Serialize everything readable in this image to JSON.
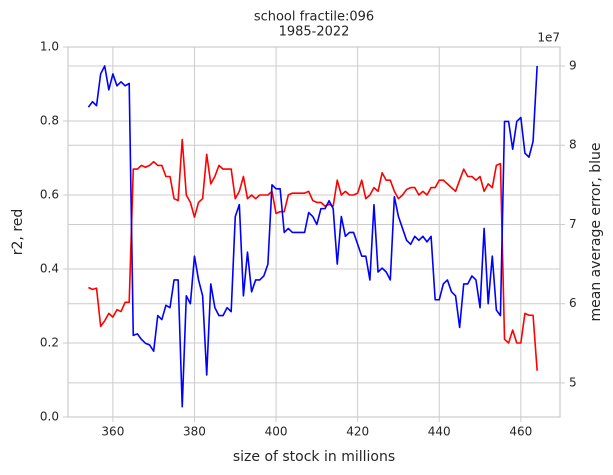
{
  "chart_data": {
    "type": "line",
    "title": "school fractile:096",
    "subtitle": "1985-2022",
    "xlabel": "size of stock in millions",
    "ylabel": "r2, red",
    "y2label": "mean average error, blue",
    "y2offset": "1e7",
    "grid": true,
    "xlim": [
      349,
      469.6
    ],
    "xticks": [
      360,
      380,
      400,
      420,
      440,
      460
    ],
    "ylim": [
      0,
      1
    ],
    "yticks": [
      {
        "value": 0,
        "label": "0.0"
      },
      0.2,
      0.4,
      0.6,
      0.8,
      {
        "value": 1,
        "label": "1.0"
      }
    ],
    "y2lim": [
      4.57,
      9.24
    ],
    "y2ticks": [
      5,
      6,
      7,
      8,
      9
    ],
    "x": [
      354,
      355,
      356,
      357,
      358,
      359,
      360,
      361,
      362,
      363,
      364,
      365,
      366,
      367,
      368,
      369,
      370,
      371,
      372,
      373,
      374,
      375,
      376,
      377,
      378,
      379,
      380,
      381,
      382,
      383,
      384,
      385,
      386,
      387,
      388,
      389,
      390,
      391,
      392,
      393,
      394,
      395,
      396,
      397,
      398,
      399,
      400,
      401,
      402,
      403,
      404,
      405,
      406,
      407,
      408,
      409,
      410,
      411,
      412,
      413,
      414,
      415,
      416,
      417,
      418,
      419,
      420,
      421,
      422,
      423,
      424,
      425,
      426,
      427,
      428,
      429,
      430,
      431,
      432,
      433,
      434,
      435,
      436,
      437,
      438,
      439,
      440,
      441,
      442,
      443,
      444,
      445,
      446,
      447,
      448,
      449,
      450,
      451,
      452,
      453,
      454,
      455,
      456,
      457,
      458,
      459,
      460,
      461,
      462,
      463,
      464
    ],
    "series": [
      {
        "color": "#ff0000",
        "axis": "y",
        "values": [
          0.35,
          0.345,
          0.348,
          0.245,
          0.26,
          0.28,
          0.27,
          0.29,
          0.285,
          0.31,
          0.31,
          0.67,
          0.67,
          0.68,
          0.675,
          0.68,
          0.69,
          0.68,
          0.68,
          0.65,
          0.65,
          0.59,
          0.585,
          0.75,
          0.6,
          0.58,
          0.54,
          0.58,
          0.59,
          0.71,
          0.63,
          0.65,
          0.68,
          0.67,
          0.67,
          0.67,
          0.59,
          0.61,
          0.65,
          0.59,
          0.6,
          0.59,
          0.6,
          0.6,
          0.6,
          0.61,
          0.55,
          0.555,
          0.555,
          0.6,
          0.605,
          0.605,
          0.605,
          0.605,
          0.61,
          0.585,
          0.58,
          0.58,
          0.57,
          0.575,
          0.57,
          0.64,
          0.6,
          0.61,
          0.6,
          0.6,
          0.605,
          0.64,
          0.59,
          0.6,
          0.62,
          0.61,
          0.66,
          0.64,
          0.64,
          0.61,
          0.59,
          0.6,
          0.615,
          0.62,
          0.62,
          0.6,
          0.61,
          0.6,
          0.62,
          0.62,
          0.64,
          0.64,
          0.63,
          0.62,
          0.61,
          0.64,
          0.67,
          0.65,
          0.65,
          0.64,
          0.65,
          0.61,
          0.63,
          0.62,
          0.68,
          0.685,
          0.21,
          0.2,
          0.235,
          0.2,
          0.2,
          0.28,
          0.275,
          0.275,
          0.125
        ]
      },
      {
        "color": "#0000ff",
        "axis": "y2",
        "values": [
          8.48,
          8.55,
          8.5,
          8.9,
          9.0,
          8.7,
          8.9,
          8.75,
          8.8,
          8.75,
          8.78,
          5.6,
          5.62,
          5.55,
          5.5,
          5.48,
          5.4,
          5.85,
          5.8,
          5.98,
          5.95,
          6.3,
          6.3,
          4.7,
          6.1,
          6.0,
          6.6,
          6.3,
          6.1,
          5.1,
          6.25,
          5.95,
          5.85,
          5.85,
          5.95,
          5.9,
          7.1,
          7.25,
          6.1,
          6.65,
          6.15,
          6.3,
          6.3,
          6.35,
          6.5,
          7.5,
          7.45,
          7.45,
          6.9,
          6.95,
          6.9,
          6.9,
          6.9,
          6.9,
          7.15,
          7.1,
          7.0,
          7.2,
          7.2,
          7.3,
          7.2,
          6.5,
          7.1,
          6.85,
          6.9,
          6.9,
          6.75,
          6.6,
          6.6,
          6.3,
          7.25,
          6.4,
          6.45,
          6.4,
          6.3,
          7.35,
          7.1,
          6.95,
          6.8,
          6.75,
          6.85,
          6.8,
          6.85,
          6.78,
          6.85,
          6.05,
          6.05,
          6.25,
          6.3,
          6.15,
          6.1,
          5.7,
          6.25,
          6.25,
          6.35,
          6.3,
          5.95,
          6.95,
          6.0,
          6.6,
          5.92,
          5.85,
          8.3,
          8.3,
          7.95,
          8.3,
          8.35,
          7.9,
          7.85,
          8.05,
          9.0
        ]
      }
    ]
  }
}
